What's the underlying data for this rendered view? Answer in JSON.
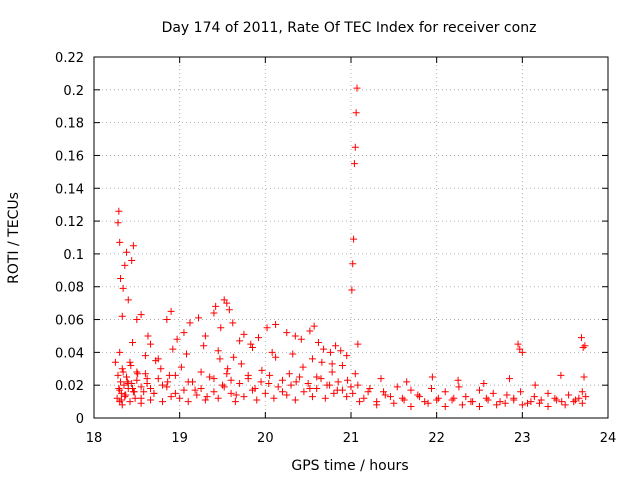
{
  "chart_data": {
    "type": "scatter",
    "title": "Day 174 of 2011, Rate Of TEC Index for receiver conz",
    "xlabel": "GPS time / hours",
    "ylabel": "ROTI / TECUs",
    "xlim": [
      18,
      24
    ],
    "ylim": [
      0,
      0.22
    ],
    "xticks": [
      18,
      19,
      20,
      21,
      22,
      23,
      24
    ],
    "xtick_labels": [
      "18",
      "19",
      "20",
      "21",
      "22",
      "23",
      "24"
    ],
    "yticks": [
      0,
      0.02,
      0.04,
      0.06,
      0.08,
      0.1,
      0.12,
      0.14,
      0.16,
      0.18,
      0.2,
      0.22
    ],
    "ytick_labels": [
      "0",
      "0.02",
      "0.04",
      "0.06",
      "0.08",
      "0.1",
      "0.12",
      "0.14",
      "0.16",
      "0.18",
      "0.2",
      "0.22"
    ],
    "grid": true,
    "marker": "+",
    "series": [
      {
        "name": "ROTI",
        "color": "#ff0000",
        "x": [
          18.27,
          18.28,
          18.29,
          18.3,
          18.31,
          18.32,
          18.33,
          18.35,
          18.36,
          18.38,
          18.4,
          18.42,
          18.44,
          18.47,
          18.5,
          18.55,
          18.62,
          18.7,
          18.78,
          18.86,
          18.3,
          18.32,
          18.34,
          18.37,
          18.4,
          18.43,
          18.46,
          18.5,
          18.55,
          18.6,
          18.66,
          18.72,
          18.8,
          18.88,
          18.95,
          19.02,
          19.1,
          19.18,
          19.25,
          19.32,
          19.4,
          19.47,
          19.52,
          19.56,
          19.6,
          19.66,
          19.72,
          19.8,
          19.88,
          19.96,
          20.04,
          20.12,
          20.2,
          20.28,
          20.36,
          20.44,
          20.52,
          20.6,
          20.66,
          20.72,
          20.78,
          20.84,
          20.9,
          20.96,
          21.02,
          21.08,
          21.15,
          21.22,
          21.3,
          21.38,
          21.46,
          21.54,
          21.62,
          21.7,
          21.78,
          21.86,
          21.94,
          22.02,
          22.1,
          22.18,
          22.26,
          22.34,
          22.42,
          22.5,
          22.58,
          22.66,
          22.74,
          22.82,
          22.9,
          22.98,
          23.06,
          23.14,
          23.22,
          23.3,
          23.38,
          23.46,
          23.54,
          23.62,
          23.7,
          23.74,
          18.33,
          18.36,
          18.39,
          18.42,
          18.45,
          18.48,
          18.51,
          18.55,
          18.58,
          18.62,
          18.66,
          18.7,
          18.75,
          18.8,
          18.85,
          18.9,
          18.95,
          19.0,
          19.05,
          19.1,
          19.15,
          19.2,
          19.25,
          19.3,
          19.35,
          19.4,
          19.45,
          19.5,
          19.55,
          19.6,
          19.65,
          19.7,
          19.75,
          19.8,
          19.85,
          19.9,
          19.95,
          20.0,
          20.05,
          20.1,
          20.15,
          20.2,
          20.25,
          20.3,
          20.35,
          20.4,
          20.45,
          20.5,
          20.55,
          20.6,
          20.65,
          20.7,
          20.75,
          20.8,
          20.85,
          20.9,
          20.95,
          21.0,
          21.1,
          21.2,
          21.3,
          21.4,
          21.5,
          21.6,
          21.7,
          21.8,
          21.9,
          22.0,
          22.1,
          22.2,
          22.3,
          22.4,
          22.5,
          22.6,
          22.7,
          22.8,
          22.9,
          23.0,
          23.1,
          23.2,
          23.3,
          23.4,
          23.5,
          23.6,
          23.66,
          23.7,
          18.28,
          18.29,
          18.3,
          18.31,
          18.33,
          18.34,
          18.36,
          18.38,
          18.4,
          18.44,
          18.46,
          18.5,
          18.55,
          18.63,
          18.66,
          18.85,
          18.9,
          18.97,
          19.05,
          19.12,
          19.22,
          19.3,
          19.4,
          19.42,
          19.48,
          19.52,
          19.55,
          19.58,
          19.62,
          19.7,
          19.75,
          19.83,
          19.92,
          20.02,
          20.12,
          20.25,
          20.35,
          20.42,
          20.52,
          20.57,
          20.62,
          20.68,
          20.76,
          20.82,
          20.88,
          20.95,
          21.01,
          21.02,
          21.03,
          21.04,
          21.05,
          21.06,
          21.07,
          21.08,
          22.95,
          22.97,
          23.0,
          23.69,
          23.71,
          23.73,
          18.25,
          18.3,
          18.45,
          18.6,
          18.75,
          18.92,
          19.08,
          19.28,
          19.45,
          19.63,
          19.85,
          20.08,
          20.32,
          20.55,
          20.78,
          21.05,
          21.35,
          21.65,
          21.95,
          22.25,
          22.55,
          22.85,
          23.15,
          23.45,
          23.72
        ],
        "y": [
          0.012,
          0.026,
          0.018,
          0.01,
          0.022,
          0.015,
          0.03,
          0.02,
          0.013,
          0.025,
          0.018,
          0.034,
          0.021,
          0.016,
          0.028,
          0.019,
          0.024,
          0.015,
          0.03,
          0.022,
          0.017,
          0.011,
          0.028,
          0.014,
          0.021,
          0.032,
          0.016,
          0.023,
          0.012,
          0.027,
          0.018,
          0.035,
          0.02,
          0.026,
          0.015,
          0.031,
          0.022,
          0.017,
          0.028,
          0.013,
          0.024,
          0.036,
          0.019,
          0.03,
          0.023,
          0.014,
          0.033,
          0.026,
          0.018,
          0.029,
          0.021,
          0.037,
          0.016,
          0.027,
          0.022,
          0.031,
          0.018,
          0.025,
          0.034,
          0.02,
          0.028,
          0.017,
          0.032,
          0.023,
          0.015,
          0.02,
          0.012,
          0.018,
          0.01,
          0.016,
          0.013,
          0.019,
          0.011,
          0.017,
          0.014,
          0.01,
          0.018,
          0.012,
          0.016,
          0.011,
          0.019,
          0.013,
          0.01,
          0.017,
          0.012,
          0.015,
          0.01,
          0.014,
          0.011,
          0.016,
          0.009,
          0.013,
          0.011,
          0.015,
          0.012,
          0.01,
          0.014,
          0.011,
          0.016,
          0.013,
          0.008,
          0.014,
          0.022,
          0.01,
          0.018,
          0.012,
          0.027,
          0.009,
          0.016,
          0.021,
          0.011,
          0.015,
          0.024,
          0.01,
          0.019,
          0.013,
          0.026,
          0.012,
          0.017,
          0.01,
          0.022,
          0.014,
          0.018,
          0.011,
          0.025,
          0.016,
          0.012,
          0.02,
          0.027,
          0.015,
          0.01,
          0.021,
          0.013,
          0.024,
          0.017,
          0.011,
          0.022,
          0.015,
          0.026,
          0.012,
          0.019,
          0.023,
          0.014,
          0.02,
          0.011,
          0.025,
          0.016,
          0.021,
          0.013,
          0.018,
          0.024,
          0.012,
          0.02,
          0.015,
          0.022,
          0.017,
          0.013,
          0.019,
          0.01,
          0.016,
          0.008,
          0.014,
          0.009,
          0.012,
          0.007,
          0.013,
          0.009,
          0.011,
          0.007,
          0.012,
          0.008,
          0.01,
          0.007,
          0.011,
          0.008,
          0.009,
          0.012,
          0.008,
          0.01,
          0.009,
          0.007,
          0.011,
          0.008,
          0.01,
          0.012,
          0.009,
          0.119,
          0.126,
          0.107,
          0.085,
          0.062,
          0.079,
          0.093,
          0.101,
          0.072,
          0.096,
          0.105,
          0.06,
          0.063,
          0.05,
          0.045,
          0.06,
          0.065,
          0.048,
          0.052,
          0.058,
          0.061,
          0.05,
          0.064,
          0.068,
          0.055,
          0.072,
          0.07,
          0.066,
          0.058,
          0.047,
          0.051,
          0.045,
          0.049,
          0.055,
          0.057,
          0.052,
          0.05,
          0.048,
          0.053,
          0.056,
          0.046,
          0.042,
          0.04,
          0.044,
          0.041,
          0.038,
          0.078,
          0.094,
          0.109,
          0.155,
          0.165,
          0.186,
          0.201,
          0.045,
          0.045,
          0.042,
          0.04,
          0.049,
          0.043,
          0.044,
          0.034,
          0.04,
          0.046,
          0.038,
          0.036,
          0.042,
          0.039,
          0.044,
          0.041,
          0.037,
          0.043,
          0.04,
          0.039,
          0.036,
          0.033,
          0.027,
          0.024,
          0.022,
          0.025,
          0.023,
          0.021,
          0.024,
          0.02,
          0.026,
          0.025
        ]
      }
    ]
  }
}
